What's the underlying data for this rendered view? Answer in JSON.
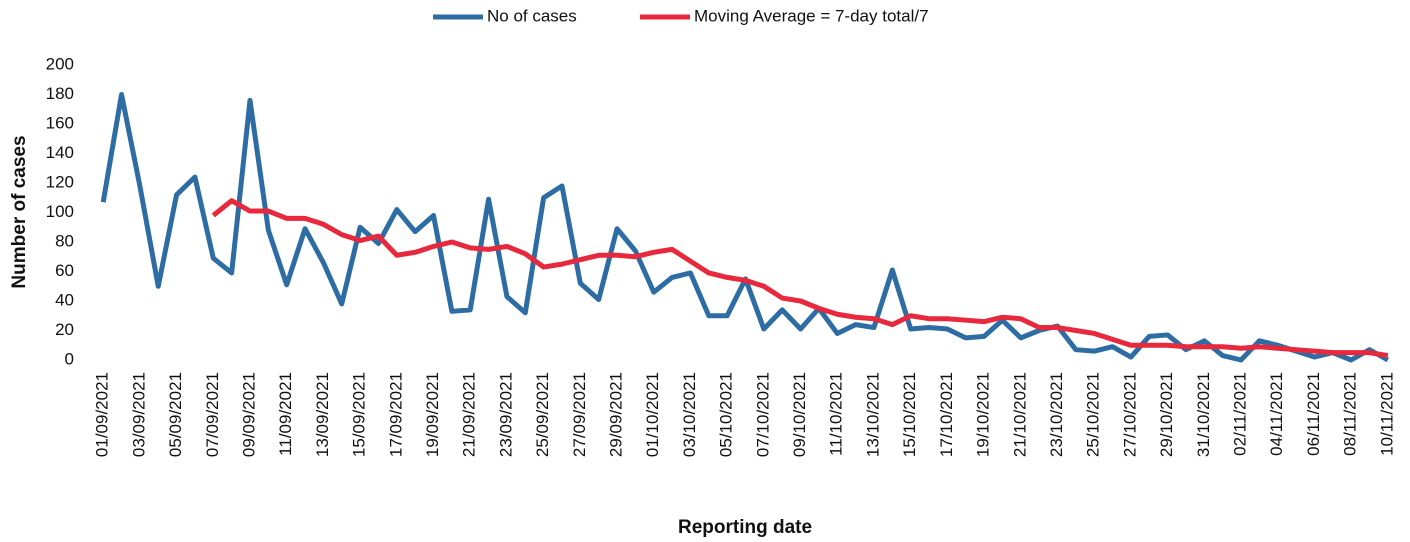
{
  "chart_data": {
    "type": "line",
    "x_label": "Reporting date",
    "y_label": "Number of cases",
    "legend": "top",
    "categories": [
      "01/09/2021",
      null,
      "03/09/2021",
      null,
      "05/09/2021",
      null,
      "07/09/2021",
      null,
      "09/09/2021",
      null,
      "11/09/2021",
      null,
      "13/09/2021",
      null,
      "15/09/2021",
      null,
      "17/09/2021",
      null,
      "19/09/2021",
      null,
      "21/09/2021",
      null,
      "23/09/2021",
      null,
      "25/09/2021",
      null,
      "27/09/2021",
      null,
      "29/09/2021",
      null,
      "01/10/2021",
      null,
      "03/10/2021",
      null,
      "05/10/2021",
      null,
      "07/10/2021",
      null,
      "09/10/2021",
      null,
      "11/10/2021",
      null,
      "13/10/2021",
      null,
      "15/10/2021",
      null,
      "17/10/2021",
      null,
      "19/10/2021",
      null,
      "21/10/2021",
      null,
      "23/10/2021",
      null,
      "25/10/2021",
      null,
      "27/10/2021",
      null,
      "29/10/2021",
      null,
      "31/10/2021",
      null,
      "02/11/2021",
      null,
      "04/11/2021",
      null,
      "06/11/2021",
      null,
      "08/11/2021",
      null,
      "10/11/2021"
    ],
    "series": [
      {
        "name": "No of cases",
        "color": "#2e6da4",
        "values": [
          107,
          180,
          118,
          50,
          112,
          124,
          69,
          59,
          176,
          88,
          51,
          89,
          66,
          38,
          90,
          79,
          102,
          87,
          98,
          33,
          34,
          109,
          43,
          32,
          110,
          118,
          52,
          41,
          89,
          74,
          46,
          56,
          59,
          30,
          30,
          55,
          21,
          34,
          21,
          35,
          18,
          24,
          22,
          61,
          21,
          22,
          21,
          15,
          16,
          27,
          15,
          20,
          23,
          7,
          6,
          9,
          2,
          16,
          17,
          7,
          13,
          3,
          0,
          13,
          10,
          6,
          2,
          5,
          0,
          7,
          0
        ]
      },
      {
        "name": "Moving Average = 7-day total/7",
        "color": "#e8283c",
        "values": [
          null,
          null,
          null,
          null,
          null,
          null,
          98,
          108,
          101,
          101,
          96,
          96,
          92,
          85,
          81,
          84,
          71,
          73,
          77,
          80,
          76,
          75,
          77,
          72,
          63,
          65,
          68,
          71,
          71,
          70,
          73,
          75,
          67,
          59,
          56,
          54,
          50,
          42,
          40,
          35,
          31,
          29,
          28,
          24,
          30,
          28,
          28,
          27,
          26,
          29,
          28,
          22,
          22,
          20,
          18,
          14,
          10,
          10,
          10,
          9,
          9,
          9,
          8,
          9,
          8,
          7,
          6,
          5,
          5,
          5,
          3
        ]
      }
    ],
    "ylim": [
      0,
      200
    ],
    "yticks": [
      0,
      20,
      40,
      60,
      80,
      100,
      120,
      140,
      160,
      180,
      200
    ]
  }
}
